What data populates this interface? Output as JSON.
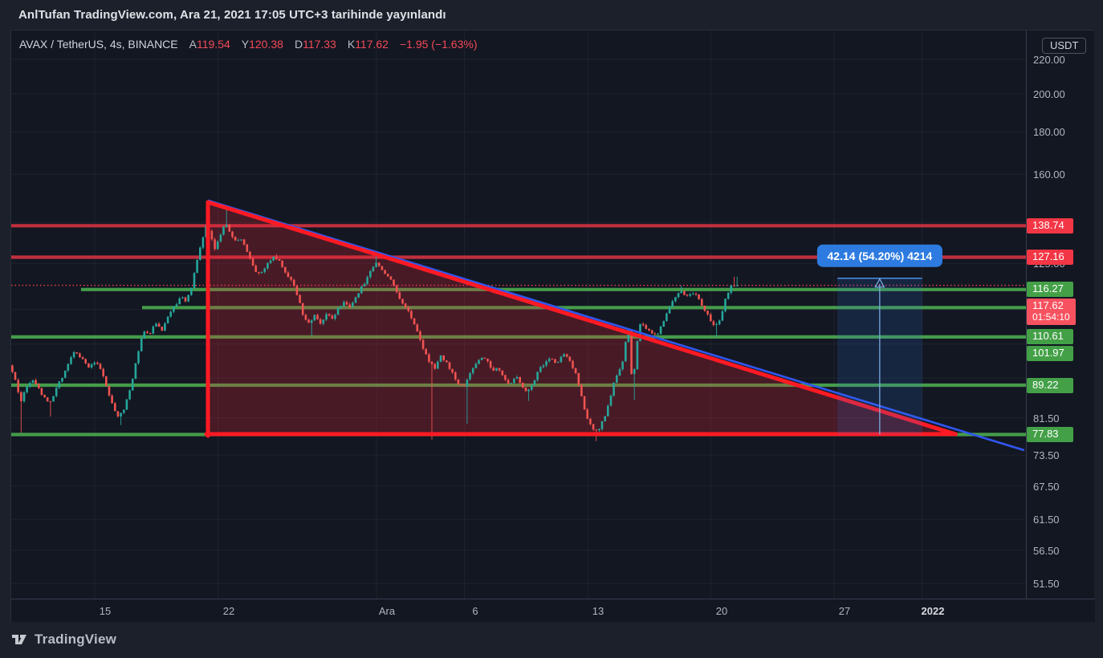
{
  "header": {
    "title": "AnlTufan TradingView.com, Ara 21, 2021 17:05 UTC+3 tarihinde yayınlandı"
  },
  "legend": {
    "title": "AVAX / TetherUS, 4s, BINANCE",
    "values": [
      {
        "label": "A",
        "value": "119.54"
      },
      {
        "label": "Y",
        "value": "120.38"
      },
      {
        "label": "D",
        "value": "117.33"
      },
      {
        "label": "K",
        "value": "117.62"
      }
    ],
    "change": "−1.95 (−1.63%)",
    "value_color": "#f34a57",
    "label_color": "#c3c6cd"
  },
  "price_axis": {
    "currency": "USDT",
    "ticks": [
      {
        "label": "220.00",
        "price": 220
      },
      {
        "label": "200.00",
        "price": 200
      },
      {
        "label": "180.00",
        "price": 180
      },
      {
        "label": "160.00",
        "price": 160
      },
      {
        "label": "125.00",
        "price": 125
      },
      {
        "label": "81.50",
        "price": 81.5
      },
      {
        "label": "73.50",
        "price": 73.5
      },
      {
        "label": "67.50",
        "price": 67.5
      },
      {
        "label": "61.50",
        "price": 61.5
      },
      {
        "label": "56.50",
        "price": 56.5
      },
      {
        "label": "51.50",
        "price": 51.5
      }
    ]
  },
  "time_axis": {
    "ticks": [
      {
        "label": "15",
        "t": 15
      },
      {
        "label": "22",
        "t": 22
      },
      {
        "label": "Ara",
        "t": 31
      },
      {
        "label": "6",
        "t": 36
      },
      {
        "label": "13",
        "t": 43
      },
      {
        "label": "20",
        "t": 50
      },
      {
        "label": "27",
        "t": 57
      },
      {
        "label": "2022",
        "t": 62,
        "bold": true
      }
    ]
  },
  "footer": {
    "brand": "TradingView"
  },
  "chart_data": {
    "type": "candlestick",
    "symbol": "AVAX / TetherUS",
    "exchange": "BINANCE",
    "interval": "4h",
    "scale": "log",
    "title": "AVAX / TetherUS, 4s, BINANCE",
    "ohlc": {
      "open": 119.54,
      "high": 120.38,
      "low": 117.33,
      "close": 117.62,
      "change": -1.95,
      "change_pct": -1.63
    },
    "last": {
      "price": 117.62,
      "label": "117.62",
      "countdown": "01:54:10",
      "color": "#f7525f"
    },
    "colors": {
      "up": "#26a69a",
      "down": "#ef5350",
      "resistance_line": "#f23645",
      "support_line": "#4caf50",
      "resistance_badge": "#f23645",
      "support_badge": "#43a047",
      "triangle_red": "#fe1a24",
      "triangle_fill": "rgba(244,36,54,0.24)",
      "trend_blue": "#3156f0",
      "projection_fill": "rgba(49,121,221,0.16)",
      "projection_edge": "#4a90e2",
      "projection_arrow": "#7cb3ec",
      "projection_label_bg": "#2d7be0",
      "grid": "rgba(240,243,250,0.055)",
      "dotted_last": "#fa3d4d"
    },
    "levels": [
      {
        "label": "138.74",
        "price": 138.74,
        "kind": "resistance"
      },
      {
        "label": "127.16",
        "price": 127.16,
        "kind": "resistance"
      },
      {
        "label": "116.27",
        "price": 116.27,
        "kind": "support",
        "start_t": 14.22
      },
      {
        "label": "110.61",
        "price": 110.61,
        "kind": "support",
        "start_t": 17.69
      },
      {
        "label": "101.97",
        "price": 101.97,
        "kind": "support"
      },
      {
        "label": "89.22",
        "price": 89.22,
        "kind": "support"
      },
      {
        "label": "77.83",
        "price": 77.83,
        "kind": "support"
      }
    ],
    "grid_prices": [
      220,
      200,
      180,
      160,
      140,
      125,
      110,
      100,
      91,
      81.5,
      73.5,
      67.5,
      61.5,
      56.5,
      51.5
    ],
    "triangle": {
      "apex_t": 21.43,
      "apex_price": 148.1,
      "end_t": 63.9,
      "base_price": 77.9
    },
    "blue_trendline": {
      "t1": 21.43,
      "p1": 148.8,
      "t2": 67.8,
      "p2": 74.5
    },
    "projection": {
      "t1": 57.18,
      "t2": 62.0,
      "from_price": 77.83,
      "to_price": 119.97,
      "label": "42.14 (54.20%) 4214"
    },
    "candles": {
      "start_t": 10.32,
      "step_days": 0.1666667,
      "count": 248
    },
    "price_path": [
      [
        10.3,
        94.5
      ],
      [
        10.67,
        90
      ],
      [
        10.94,
        85
      ],
      [
        11.21,
        88.5
      ],
      [
        11.72,
        90.5
      ],
      [
        12.22,
        86.5
      ],
      [
        12.58,
        84.5
      ],
      [
        12.95,
        88
      ],
      [
        13.4,
        92
      ],
      [
        14,
        98
      ],
      [
        14.45,
        96
      ],
      [
        14.82,
        93.5
      ],
      [
        15.23,
        95.5
      ],
      [
        15.64,
        91.5
      ],
      [
        16.05,
        85.5
      ],
      [
        16.5,
        81.8
      ],
      [
        16.87,
        84
      ],
      [
        17.23,
        89
      ],
      [
        17.6,
        97
      ],
      [
        17.92,
        104
      ],
      [
        18.24,
        102.5
      ],
      [
        18.6,
        106
      ],
      [
        18.97,
        104
      ],
      [
        19.33,
        108
      ],
      [
        19.7,
        111
      ],
      [
        20.06,
        114
      ],
      [
        20.33,
        112.5
      ],
      [
        20.65,
        117
      ],
      [
        20.97,
        126
      ],
      [
        21.25,
        133
      ],
      [
        21.52,
        139.5
      ],
      [
        21.75,
        135
      ],
      [
        21.98,
        129.5
      ],
      [
        22.25,
        134
      ],
      [
        22.57,
        140.5
      ],
      [
        22.84,
        136.5
      ],
      [
        23.16,
        133
      ],
      [
        23.44,
        134
      ],
      [
        23.75,
        130
      ],
      [
        24.07,
        125.5
      ],
      [
        24.39,
        121.5
      ],
      [
        24.76,
        123
      ],
      [
        25.08,
        125.5
      ],
      [
        25.4,
        127.3
      ],
      [
        25.72,
        125.5
      ],
      [
        26.04,
        121
      ],
      [
        26.4,
        118.5
      ],
      [
        26.72,
        113.5
      ],
      [
        27.04,
        107.5
      ],
      [
        27.36,
        106
      ],
      [
        27.68,
        108.5
      ],
      [
        28,
        105.5
      ],
      [
        28.31,
        109
      ],
      [
        28.68,
        107.5
      ],
      [
        29,
        110.5
      ],
      [
        29.32,
        112
      ],
      [
        29.64,
        110.5
      ],
      [
        29.96,
        113.5
      ],
      [
        30.28,
        116.5
      ],
      [
        30.59,
        119.5
      ],
      [
        30.91,
        123.5
      ],
      [
        31.14,
        125.8
      ],
      [
        31.46,
        123
      ],
      [
        31.83,
        120.5
      ],
      [
        32.15,
        117.5
      ],
      [
        32.46,
        113.5
      ],
      [
        32.83,
        111
      ],
      [
        33.15,
        107.5
      ],
      [
        33.47,
        104
      ],
      [
        33.79,
        99
      ],
      [
        34.15,
        95.5
      ],
      [
        34.47,
        93.5
      ],
      [
        34.79,
        97
      ],
      [
        35.11,
        95
      ],
      [
        35.47,
        92.5
      ],
      [
        35.79,
        89.5
      ],
      [
        36.11,
        88.5
      ],
      [
        36.43,
        91.5
      ],
      [
        36.75,
        94
      ],
      [
        37.07,
        96.5
      ],
      [
        37.43,
        95.5
      ],
      [
        37.75,
        93
      ],
      [
        38.07,
        94
      ],
      [
        38.39,
        91
      ],
      [
        38.71,
        89.5
      ],
      [
        39.08,
        91.5
      ],
      [
        39.4,
        89
      ],
      [
        39.72,
        87.5
      ],
      [
        40.08,
        90
      ],
      [
        40.4,
        93
      ],
      [
        40.72,
        95
      ],
      [
        41.08,
        96
      ],
      [
        41.4,
        94.5
      ],
      [
        41.72,
        97.5
      ],
      [
        42.04,
        96
      ],
      [
        42.41,
        93
      ],
      [
        42.73,
        88.5
      ],
      [
        43.05,
        82.5
      ],
      [
        43.37,
        79.5
      ],
      [
        43.73,
        78.5
      ],
      [
        44.05,
        81
      ],
      [
        44.32,
        84
      ],
      [
        44.6,
        89
      ],
      [
        44.87,
        92.5
      ],
      [
        45.14,
        95
      ],
      [
        45.42,
        103
      ],
      [
        45.55,
        104.5
      ],
      [
        45.7,
        86.5
      ],
      [
        45.92,
        99
      ],
      [
        46.19,
        106.5
      ],
      [
        46.51,
        104.5
      ],
      [
        46.83,
        103
      ],
      [
        47.15,
        102.5
      ],
      [
        47.47,
        106.5
      ],
      [
        47.79,
        110.5
      ],
      [
        48.11,
        114
      ],
      [
        48.43,
        116.3
      ],
      [
        48.75,
        113.5
      ],
      [
        49.07,
        115.5
      ],
      [
        49.39,
        114
      ],
      [
        49.71,
        111
      ],
      [
        50.03,
        108
      ],
      [
        50.35,
        104.8
      ],
      [
        50.67,
        107
      ],
      [
        50.99,
        113
      ],
      [
        51.31,
        117.5
      ],
      [
        51.62,
        117.62
      ]
    ],
    "low_spikes": [
      [
        10.94,
        78.2
      ],
      [
        12.6,
        81.8
      ],
      [
        16.5,
        79.9
      ],
      [
        27.4,
        102.2
      ],
      [
        34.18,
        76.7
      ],
      [
        36.2,
        80.2
      ],
      [
        39.72,
        85.4
      ],
      [
        43.55,
        76.4
      ],
      [
        45.7,
        85.6
      ],
      [
        50.33,
        101.8
      ]
    ],
    "high_spikes": [
      [
        21.55,
        145.6
      ],
      [
        22.57,
        146.2
      ],
      [
        25.4,
        128.3
      ],
      [
        31.12,
        127.7
      ],
      [
        48.4,
        117.6
      ],
      [
        51.47,
        120.5
      ]
    ]
  }
}
